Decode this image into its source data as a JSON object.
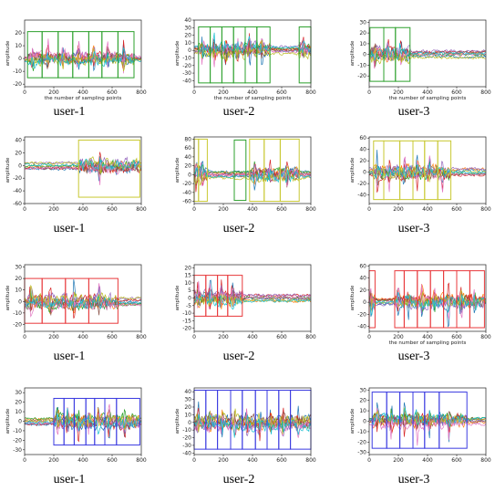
{
  "chart_data": [
    {
      "type": "line",
      "caption": "user-1",
      "xlabel": "the number of sampling points",
      "ylabel": "amplitude",
      "xlim": [
        0,
        800
      ],
      "ylim": [
        -22,
        30
      ],
      "xticks": [
        0,
        200,
        400,
        600,
        800
      ],
      "yticks": [
        -20,
        -10,
        0,
        10,
        20
      ],
      "box_color": "#2ca02c",
      "boxes": [
        [
          20,
          120
        ],
        [
          120,
          230
        ],
        [
          230,
          330
        ],
        [
          330,
          440
        ],
        [
          440,
          530
        ],
        [
          530,
          640
        ],
        [
          640,
          750
        ]
      ],
      "box_y": [
        -15,
        21
      ],
      "style": "periodic",
      "seed": 1
    },
    {
      "type": "line",
      "caption": "user-2",
      "xlabel": "the number of sampling points",
      "ylabel": "amplitude",
      "xlim": [
        0,
        800
      ],
      "ylim": [
        -48,
        40
      ],
      "xticks": [
        0,
        200,
        400,
        600,
        800
      ],
      "yticks": [
        -40,
        -30,
        -20,
        -10,
        0,
        10,
        20,
        30,
        40
      ],
      "box_color": "#2ca02c",
      "boxes": [
        [
          30,
          110
        ],
        [
          110,
          190
        ],
        [
          190,
          270
        ],
        [
          270,
          350
        ],
        [
          350,
          430
        ],
        [
          430,
          520
        ],
        [
          720,
          800
        ]
      ],
      "box_y": [
        -43,
        31
      ],
      "style": "periodic-late",
      "seed": 2
    },
    {
      "type": "line",
      "caption": "user-3",
      "xlabel": "the number of sampling points",
      "ylabel": "amplitude",
      "xlim": [
        0,
        800
      ],
      "ylim": [
        -30,
        32
      ],
      "xticks": [
        0,
        200,
        400,
        600,
        800
      ],
      "yticks": [
        -20,
        -10,
        0,
        10,
        20,
        30
      ],
      "box_color": "#2ca02c",
      "boxes": [
        [
          5,
          100
        ],
        [
          100,
          180
        ],
        [
          180,
          280
        ]
      ],
      "box_y": [
        -25,
        25
      ],
      "style": "early",
      "seed": 3
    },
    {
      "type": "line",
      "caption": "user-1",
      "xlabel": "",
      "ylabel": "amplitude",
      "xlim": [
        0,
        800
      ],
      "ylim": [
        -60,
        45
      ],
      "xticks": [
        0,
        200,
        400,
        600,
        800
      ],
      "yticks": [
        -60,
        -40,
        -20,
        0,
        20,
        40
      ],
      "box_color": "#c8c832",
      "boxes": [
        [
          370,
          790
        ]
      ],
      "box_y": [
        -50,
        40
      ],
      "style": "late-big",
      "seed": 4
    },
    {
      "type": "line",
      "caption": "user-2",
      "xlabel": "",
      "ylabel": "amplitude",
      "xlim": [
        0,
        800
      ],
      "ylim": [
        -65,
        85
      ],
      "xticks": [
        0,
        200,
        400,
        600,
        800
      ],
      "yticks": [
        -60,
        -40,
        -20,
        0,
        20,
        40,
        60,
        80
      ],
      "box_color": "#c8c832",
      "boxes": [
        [
          0,
          30
        ],
        [
          30,
          90
        ],
        [
          380,
          480
        ],
        [
          480,
          590
        ],
        [
          590,
          720
        ]
      ],
      "box_y": [
        -60,
        80
      ],
      "extra_box": {
        "color": "#2ca02c",
        "range": [
          275,
          355
        ],
        "y": [
          -58,
          78
        ]
      },
      "style": "sparse",
      "seed": 5
    },
    {
      "type": "line",
      "caption": "user-3",
      "xlabel": "",
      "ylabel": "amplitude",
      "xlim": [
        0,
        800
      ],
      "ylim": [
        -55,
        62
      ],
      "xticks": [
        0,
        200,
        400,
        600,
        800
      ],
      "yticks": [
        -40,
        -20,
        0,
        20,
        40,
        60
      ],
      "box_color": "#c8c832",
      "boxes": [
        [
          30,
          100
        ],
        [
          100,
          210
        ],
        [
          210,
          300
        ],
        [
          300,
          380
        ],
        [
          380,
          470
        ],
        [
          470,
          560
        ]
      ],
      "box_y": [
        -48,
        55
      ],
      "style": "periodic",
      "seed": 6
    },
    {
      "type": "line",
      "caption": "user-1",
      "xlabel": "",
      "ylabel": "amplitude",
      "xlim": [
        0,
        800
      ],
      "ylim": [
        -26,
        32
      ],
      "xticks": [
        0,
        200,
        400,
        600,
        800
      ],
      "yticks": [
        -20,
        -10,
        0,
        10,
        20,
        30
      ],
      "box_color": "#e8383b",
      "boxes": [
        [
          0,
          120
        ],
        [
          120,
          280
        ],
        [
          280,
          440
        ],
        [
          440,
          640
        ]
      ],
      "box_y": [
        -19,
        20
      ],
      "style": "noisy",
      "seed": 7
    },
    {
      "type": "line",
      "caption": "user-2",
      "xlabel": "",
      "ylabel": "amplitude",
      "xlim": [
        0,
        800
      ],
      "ylim": [
        -22,
        22
      ],
      "xticks": [
        0,
        200,
        400,
        600,
        800
      ],
      "yticks": [
        -20,
        -15,
        -10,
        -5,
        0,
        5,
        10,
        15,
        20
      ],
      "box_color": "#e8383b",
      "boxes": [
        [
          0,
          80
        ],
        [
          80,
          160
        ],
        [
          160,
          230
        ],
        [
          230,
          330
        ]
      ],
      "box_y": [
        -12,
        15
      ],
      "style": "noisy-early",
      "seed": 8
    },
    {
      "type": "line",
      "caption": "user-3",
      "xlabel": "the number of sampling points",
      "ylabel": "amplitude",
      "xlim": [
        0,
        800
      ],
      "ylim": [
        -48,
        62
      ],
      "xticks": [
        0,
        200,
        400,
        600,
        800
      ],
      "yticks": [
        -40,
        -20,
        0,
        20,
        40,
        60
      ],
      "box_color": "#e8383b",
      "boxes": [
        [
          0,
          40
        ],
        [
          175,
          240
        ],
        [
          240,
          330
        ],
        [
          330,
          420
        ],
        [
          420,
          510
        ],
        [
          510,
          600
        ],
        [
          600,
          690
        ],
        [
          690,
          790
        ]
      ],
      "box_y": [
        -42,
        52
      ],
      "style": "periodic-right",
      "seed": 9
    },
    {
      "type": "line",
      "caption": "user-1",
      "xlabel": "",
      "ylabel": "amplitude",
      "xlim": [
        0,
        800
      ],
      "ylim": [
        -35,
        35
      ],
      "xticks": [
        0,
        200,
        400,
        600,
        800
      ],
      "yticks": [
        -30,
        -20,
        -10,
        0,
        10,
        20,
        30
      ],
      "box_color": "#3a3ae0",
      "boxes": [
        [
          200,
          270
        ],
        [
          270,
          340
        ],
        [
          340,
          420
        ],
        [
          420,
          480
        ],
        [
          480,
          550
        ],
        [
          550,
          630
        ],
        [
          630,
          790
        ]
      ],
      "box_y": [
        -25,
        24
      ],
      "style": "late-periodic",
      "seed": 10
    },
    {
      "type": "line",
      "caption": "user-2",
      "xlabel": "",
      "ylabel": "amplitude",
      "xlim": [
        0,
        800
      ],
      "ylim": [
        -42,
        45
      ],
      "xticks": [
        0,
        200,
        400,
        600,
        800
      ],
      "yticks": [
        -40,
        -30,
        -20,
        -10,
        0,
        10,
        20,
        30,
        40
      ],
      "box_color": "#3a3ae0",
      "boxes": [
        [
          0,
          80
        ],
        [
          80,
          160
        ],
        [
          160,
          250
        ],
        [
          250,
          330
        ],
        [
          330,
          420
        ],
        [
          420,
          500
        ],
        [
          500,
          580
        ],
        [
          580,
          660
        ],
        [
          660,
          800
        ]
      ],
      "box_y": [
        -35,
        42
      ],
      "style": "periodic",
      "seed": 11
    },
    {
      "type": "line",
      "caption": "user-3",
      "xlabel": "",
      "ylabel": "amplitude",
      "xlim": [
        0,
        800
      ],
      "ylim": [
        -32,
        32
      ],
      "xticks": [
        0,
        200,
        400,
        600,
        800
      ],
      "yticks": [
        -30,
        -20,
        -10,
        0,
        10,
        20,
        30
      ],
      "box_color": "#3a3ae0",
      "boxes": [
        [
          20,
          120
        ],
        [
          120,
          210
        ],
        [
          210,
          300
        ],
        [
          300,
          380
        ],
        [
          380,
          480
        ],
        [
          480,
          670
        ]
      ],
      "box_y": [
        -26,
        28
      ],
      "style": "periodic",
      "seed": 12
    }
  ]
}
